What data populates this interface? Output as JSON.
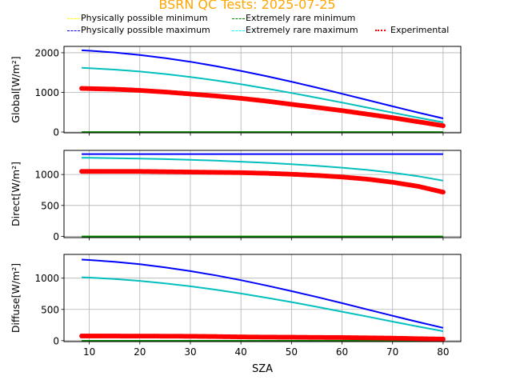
{
  "title": "BSRN QC Tests: 2025-07-25",
  "title_color": "#FFA500",
  "legend": [
    {
      "label": "Physically possible minimum",
      "color": "#FFFF00",
      "style": "dashed"
    },
    {
      "label": "Extremely rare minimum",
      "color": "#008000",
      "style": "dashed"
    },
    {
      "label": "Physically possible maximum",
      "color": "#0000FF",
      "style": "dashed"
    },
    {
      "label": "Extremely rare maximum",
      "color": "#00FFFF",
      "style": "dashed"
    },
    {
      "label": "Experimental",
      "color": "#FF0000",
      "style": "dotted"
    }
  ],
  "chart_data": [
    {
      "type": "line",
      "ylabel": "Global[W/m²]",
      "xlabel": "",
      "xlim": [
        5,
        83.5
      ],
      "ylim": [
        -20,
        2160
      ],
      "yticks": [
        0,
        1000,
        2000
      ],
      "xticks": [
        10,
        20,
        30,
        40,
        50,
        60,
        70,
        80
      ],
      "grid": true,
      "x": [
        8.5,
        10,
        15,
        20,
        25,
        30,
        35,
        40,
        45,
        50,
        55,
        60,
        65,
        70,
        75,
        80
      ],
      "series": [
        {
          "name": "Physically possible minimum",
          "color": "#FFFF00",
          "values": [
            -4,
            -4,
            -4,
            -4,
            -4,
            -4,
            -4,
            -4,
            -4,
            -4,
            -4,
            -4,
            -4,
            -4,
            -4,
            -4
          ]
        },
        {
          "name": "Extremely rare minimum",
          "color": "#008000",
          "values": [
            -2,
            -2,
            -2,
            -2,
            -2,
            -2,
            -2,
            -2,
            -2,
            -2,
            -2,
            -2,
            -2,
            -2,
            -2,
            -2
          ]
        },
        {
          "name": "Physically possible maximum",
          "color": "#0000FF",
          "values": [
            2061,
            2051,
            2007,
            1945,
            1866,
            1772,
            1664,
            1543,
            1411,
            1269,
            1120,
            965,
            807,
            648,
            493,
            343
          ]
        },
        {
          "name": "Extremely rare maximum",
          "color": "#00BFBF",
          "values": [
            1619,
            1611,
            1575,
            1526,
            1463,
            1388,
            1302,
            1205,
            1099,
            986,
            866,
            742,
            616,
            489,
            364,
            245
          ]
        },
        {
          "name": "Experimental",
          "color": "#FF0000",
          "values": [
            1100,
            1095,
            1080,
            1050,
            1010,
            960,
            910,
            850,
            780,
            700,
            620,
            540,
            450,
            360,
            260,
            160
          ]
        }
      ]
    },
    {
      "type": "line",
      "ylabel": "Direct[W/m²]",
      "xlabel": "",
      "xlim": [
        5,
        83.5
      ],
      "ylim": [
        -20,
        1390
      ],
      "yticks": [
        0,
        500,
        1000
      ],
      "xticks": [
        10,
        20,
        30,
        40,
        50,
        60,
        70,
        80
      ],
      "grid": true,
      "x": [
        8.5,
        10,
        15,
        20,
        25,
        30,
        35,
        40,
        45,
        50,
        55,
        60,
        65,
        70,
        75,
        80
      ],
      "series": [
        {
          "name": "Physically possible minimum",
          "color": "#FFFF00",
          "values": [
            -4,
            -4,
            -4,
            -4,
            -4,
            -4,
            -4,
            -4,
            -4,
            -4,
            -4,
            -4,
            -4,
            -4,
            -4,
            -4
          ]
        },
        {
          "name": "Extremely rare minimum",
          "color": "#008000",
          "values": [
            -2,
            -2,
            -2,
            -2,
            -2,
            -2,
            -2,
            -2,
            -2,
            -2,
            -2,
            -2,
            -2,
            -2,
            -2,
            -2
          ]
        },
        {
          "name": "Physically possible maximum",
          "color": "#0000FF",
          "values": [
            1330,
            1330,
            1330,
            1330,
            1330,
            1330,
            1330,
            1330,
            1330,
            1330,
            1330,
            1330,
            1330,
            1330,
            1330,
            1330
          ]
        },
        {
          "name": "Extremely rare maximum",
          "color": "#00BFBF",
          "values": [
            1271,
            1270,
            1265,
            1258,
            1249,
            1238,
            1224,
            1208,
            1189,
            1167,
            1141,
            1110,
            1074,
            1029,
            974,
            901
          ]
        },
        {
          "name": "Experimental",
          "color": "#FF0000",
          "values": [
            1050,
            1050,
            1050,
            1050,
            1045,
            1040,
            1035,
            1030,
            1020,
            1005,
            985,
            960,
            925,
            875,
            810,
            715
          ]
        }
      ]
    },
    {
      "type": "line",
      "ylabel": "Diffuse[W/m²]",
      "xlabel": "SZA",
      "xlim": [
        5,
        83.5
      ],
      "ylim": [
        -15,
        1380
      ],
      "yticks": [
        0,
        500,
        1000
      ],
      "xticks": [
        10,
        20,
        30,
        40,
        50,
        60,
        70,
        80
      ],
      "grid": true,
      "x": [
        8.5,
        10,
        15,
        20,
        25,
        30,
        35,
        40,
        45,
        50,
        55,
        60,
        65,
        70,
        75,
        80
      ],
      "series": [
        {
          "name": "Physically possible minimum",
          "color": "#FFFF00",
          "values": [
            -4,
            -4,
            -4,
            -4,
            -4,
            -4,
            -4,
            -4,
            -4,
            -4,
            -4,
            -4,
            -4,
            -4,
            -4,
            -4
          ]
        },
        {
          "name": "Extremely rare minimum",
          "color": "#008000",
          "values": [
            -2,
            -2,
            -2,
            -2,
            -2,
            -2,
            -2,
            -2,
            -2,
            -2,
            -2,
            -2,
            -2,
            -2,
            -2,
            -2
          ]
        },
        {
          "name": "Physically possible maximum",
          "color": "#0000FF",
          "values": [
            1297,
            1290,
            1262,
            1223,
            1173,
            1113,
            1045,
            968,
            884,
            793,
            699,
            600,
            499,
            399,
            300,
            205
          ]
        },
        {
          "name": "Extremely rare maximum",
          "color": "#00BFBF",
          "values": [
            1014,
            1009,
            987,
            956,
            916,
            869,
            815,
            754,
            688,
            617,
            542,
            464,
            385,
            305,
            227,
            152
          ]
        },
        {
          "name": "Experimental",
          "color": "#FF0000",
          "values": [
            75,
            75,
            74,
            73,
            72,
            70,
            66,
            60,
            57,
            55,
            52,
            50,
            45,
            40,
            32,
            25
          ]
        }
      ]
    }
  ]
}
